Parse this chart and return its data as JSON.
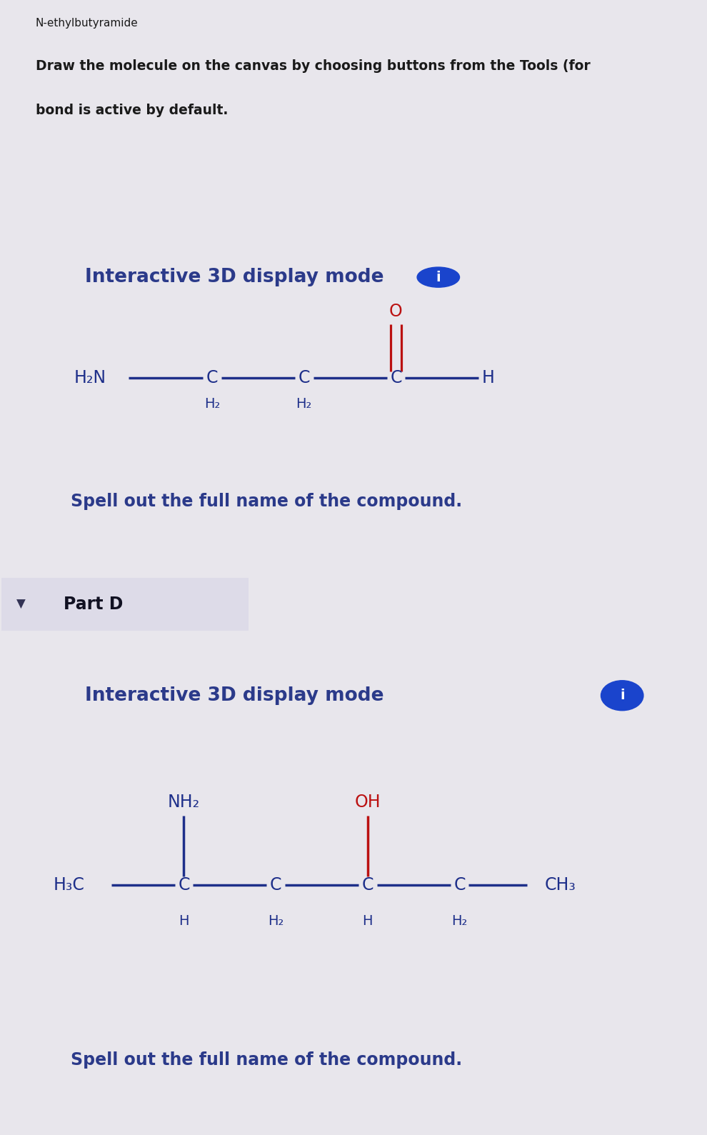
{
  "title": "N-ethylbutyramide",
  "instruction_line1": "Draw the molecule on the canvas by choosing buttons from the Tools (for",
  "instruction_line2": "bond is active by default.",
  "top_bg": "#e8e6ec",
  "panel1_header_bg": "#9e9bbb",
  "panel1_bg": "#cccae0",
  "panel2_header_bg": "#8a88a8",
  "panel2_bg": "#c8c6dc",
  "text_dark": "#2b3a8a",
  "text_black": "#1a1a1a",
  "text_bold_black": "#111111",
  "red_color": "#bb1111",
  "blue_color": "#1e2f8a",
  "bond_color": "#1e2f8a",
  "info_button_color": "#1a44cc",
  "interactive_text": "Interactive 3D display mode",
  "spell_text": "Spell out the full name of the compound.",
  "part_d_text": "Part D"
}
